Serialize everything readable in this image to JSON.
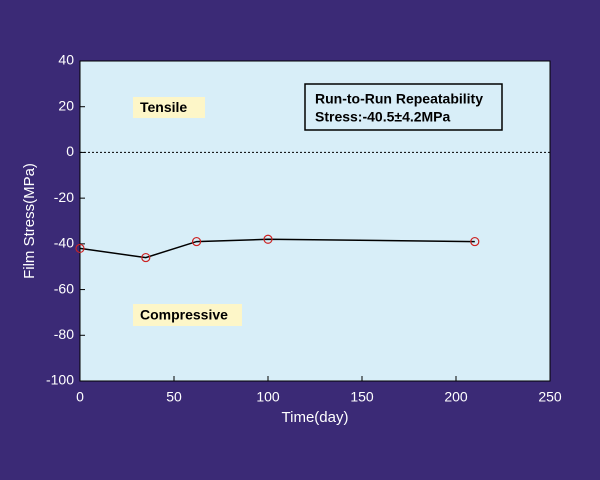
{
  "chart_data": {
    "type": "line",
    "x_label": "Time(day)",
    "y_label": "Film Stress(MPa)",
    "x": [
      0,
      35,
      62,
      100,
      210
    ],
    "series": [
      {
        "name": "Film Stress",
        "line_color": "#000000",
        "marker_color": "#cc2222",
        "values": [
          -42,
          -46,
          -39,
          -38,
          -39
        ]
      }
    ],
    "xlim": [
      0,
      250
    ],
    "xticks": [
      0,
      50,
      100,
      150,
      200,
      250
    ],
    "ylim": [
      -100,
      40
    ],
    "yticks": [
      -100,
      -80,
      -60,
      -40,
      -20,
      0,
      20,
      40
    ],
    "reference_line": 0,
    "annotations": [
      "Tensile",
      "Compressive"
    ],
    "annotation_box": [
      "Run-to-Run Repeatability",
      "Stress:-40.5±4.2MPa"
    ]
  }
}
